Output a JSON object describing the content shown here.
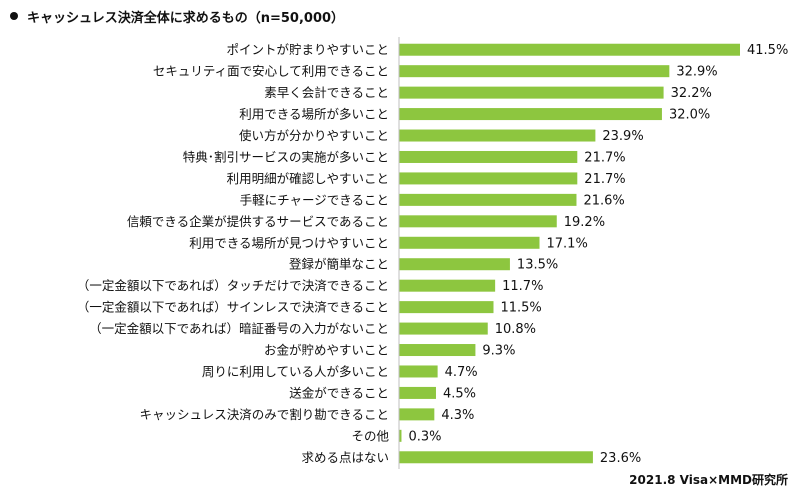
{
  "chart_data": {
    "type": "bar",
    "orientation": "horizontal",
    "title": "キャッシュレス決済全体に求めるもの（n=50,000）",
    "categories": [
      "ポイントが貯まりやすいこと",
      "セキュリティ面で安心して利用できること",
      "素早く会計できること",
      "利用できる場所が多いこと",
      "使い方が分かりやすいこと",
      "特典･割引サービスの実施が多いこと",
      "利用明細が確認しやすいこと",
      "手軽にチャージできること",
      "信頼できる企業が提供するサービスであること",
      "利用できる場所が見つけやすいこと",
      "登録が簡単なこと",
      "（一定金額以下であれば）タッチだけで決済できること",
      "（一定金額以下であれば）サインレスで決済できること",
      "（一定金額以下であれば）暗証番号の入力がないこと",
      "お金が貯めやすいこと",
      "周りに利用している人が多いこと",
      "送金ができること",
      "キャッシュレス決済のみで割り勘できること",
      "その他",
      "求める点はない"
    ],
    "values": [
      41.5,
      32.9,
      32.2,
      32.0,
      23.9,
      21.7,
      21.7,
      21.6,
      19.2,
      17.1,
      13.5,
      11.7,
      11.5,
      10.8,
      9.3,
      4.7,
      4.5,
      4.3,
      0.3,
      23.6
    ],
    "value_labels": [
      "41.5%",
      "32.9%",
      "32.2%",
      "32.0%",
      "23.9%",
      "21.7%",
      "21.7%",
      "21.6%",
      "19.2%",
      "17.1%",
      "13.5%",
      "11.7%",
      "11.5%",
      "10.8%",
      "9.3%",
      "4.7%",
      "4.5%",
      "4.3%",
      "0.3%",
      "23.6%"
    ],
    "unit": "%",
    "bar_color": "#8DC63F",
    "grid": false,
    "legend": "none"
  },
  "source": "2021.8 Visa×MMD研究所"
}
